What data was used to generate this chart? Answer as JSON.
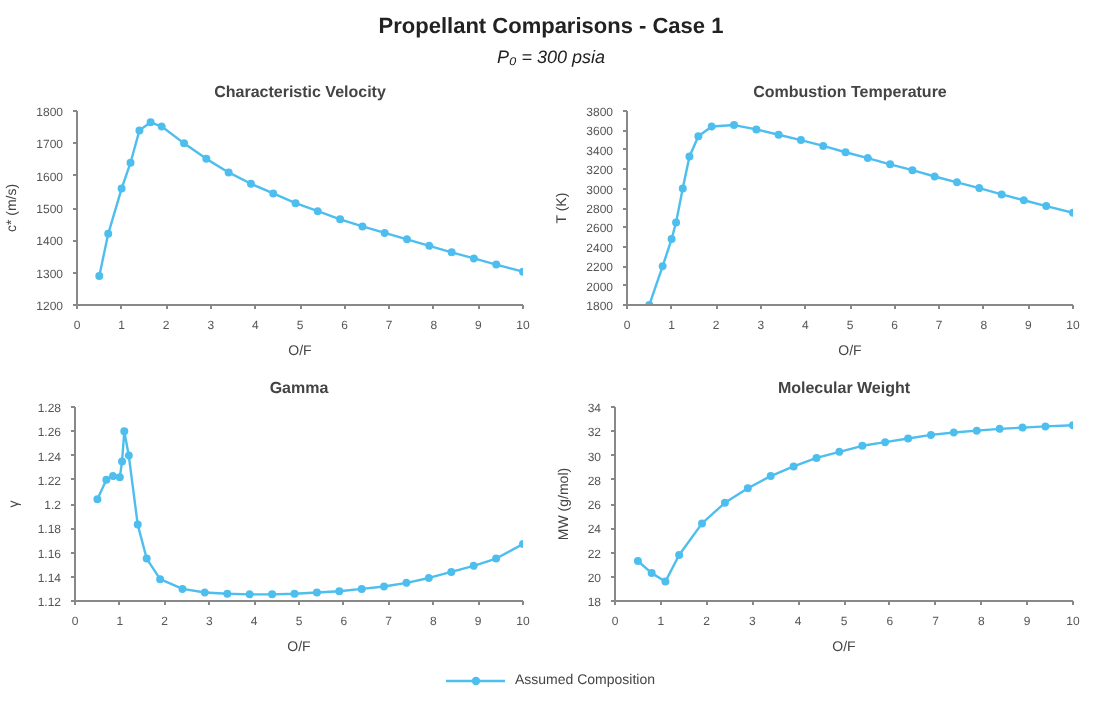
{
  "chart_data": [
    {
      "type": "other",
      "title": "Propellant Comparisons - Case 1",
      "subtitle": "P₀ = 300 psia"
    },
    {
      "type": "line",
      "title": "Characteristic Velocity",
      "xlabel": "O/F",
      "ylabel": "c* (m/s)",
      "xlim": [
        0,
        10
      ],
      "xticks": [
        0,
        1,
        2,
        3,
        4,
        5,
        6,
        7,
        8,
        9,
        10
      ],
      "ylim": [
        1200,
        1800
      ],
      "yticks": [
        1200,
        1300,
        1400,
        1500,
        1600,
        1700,
        1800
      ],
      "marker": "circle",
      "x": [
        0.5,
        0.7,
        1.0,
        1.2,
        1.4,
        1.65,
        1.9,
        2.4,
        2.9,
        3.4,
        3.9,
        4.4,
        4.9,
        5.4,
        5.9,
        6.4,
        6.9,
        7.4,
        7.9,
        8.4,
        8.9,
        9.4,
        10
      ],
      "series": [
        {
          "color": "#4dbeee",
          "values": [
            1290,
            1420,
            1560,
            1640,
            1740,
            1765,
            1752,
            1700,
            1652,
            1610,
            1575,
            1545,
            1515,
            1490,
            1465,
            1443,
            1423,
            1403,
            1383,
            1363,
            1344,
            1325,
            1303
          ]
        }
      ]
    },
    {
      "type": "line",
      "title": "Combustion Temperature",
      "xlabel": "O/F",
      "ylabel": "T (K)",
      "xlim": [
        0,
        10
      ],
      "xticks": [
        0,
        1,
        2,
        3,
        4,
        5,
        6,
        7,
        8,
        9,
        10
      ],
      "ylim": [
        1800,
        3800
      ],
      "yticks": [
        1800,
        2000,
        2200,
        2400,
        2600,
        2800,
        3000,
        3200,
        3400,
        3600,
        3800
      ],
      "marker": "circle",
      "x": [
        0.5,
        0.8,
        1.0,
        1.1,
        1.25,
        1.4,
        1.6,
        1.9,
        2.4,
        2.9,
        3.4,
        3.9,
        4.4,
        4.9,
        5.4,
        5.9,
        6.4,
        6.9,
        7.4,
        7.9,
        8.4,
        8.9,
        9.4,
        10
      ],
      "series": [
        {
          "color": "#4dbeee",
          "values": [
            1800,
            2200,
            2480,
            2650,
            3000,
            3330,
            3540,
            3640,
            3655,
            3610,
            3555,
            3500,
            3440,
            3375,
            3315,
            3250,
            3190,
            3125,
            3065,
            3005,
            2940,
            2880,
            2820,
            2750
          ]
        }
      ]
    },
    {
      "type": "line",
      "title": "Gamma",
      "xlabel": "O/F",
      "ylabel": "γ",
      "xlim": [
        0,
        10
      ],
      "xticks": [
        0,
        1,
        2,
        3,
        4,
        5,
        6,
        7,
        8,
        9,
        10
      ],
      "ylim": [
        1.12,
        1.28
      ],
      "yticks": [
        1.12,
        1.14,
        1.16,
        1.18,
        1.2,
        1.22,
        1.24,
        1.26,
        1.28
      ],
      "marker": "circle",
      "x": [
        0.5,
        0.7,
        0.85,
        1.0,
        1.05,
        1.1,
        1.2,
        1.4,
        1.6,
        1.9,
        2.4,
        2.9,
        3.4,
        3.9,
        4.4,
        4.9,
        5.4,
        5.9,
        6.4,
        6.9,
        7.4,
        7.9,
        8.4,
        8.9,
        9.4,
        10
      ],
      "series": [
        {
          "color": "#4dbeee",
          "values": [
            1.204,
            1.22,
            1.223,
            1.222,
            1.235,
            1.26,
            1.24,
            1.183,
            1.155,
            1.138,
            1.13,
            1.127,
            1.126,
            1.1255,
            1.1255,
            1.126,
            1.127,
            1.128,
            1.13,
            1.132,
            1.135,
            1.139,
            1.144,
            1.149,
            1.155,
            1.167
          ]
        }
      ]
    },
    {
      "type": "line",
      "title": "Molecular Weight",
      "xlabel": "O/F",
      "ylabel": "MW (g/mol)",
      "xlim": [
        0,
        10
      ],
      "xticks": [
        0,
        1,
        2,
        3,
        4,
        5,
        6,
        7,
        8,
        9,
        10
      ],
      "ylim": [
        18,
        34
      ],
      "yticks": [
        18,
        20,
        22,
        24,
        26,
        28,
        30,
        32,
        34
      ],
      "marker": "circle",
      "legend": "bottom",
      "x": [
        0.5,
        0.8,
        1.1,
        1.4,
        1.9,
        2.4,
        2.9,
        3.4,
        3.9,
        4.4,
        4.9,
        5.4,
        5.9,
        6.4,
        6.9,
        7.4,
        7.9,
        8.4,
        8.9,
        9.4,
        10
      ],
      "series": [
        {
          "name": "Assumed Composition",
          "color": "#4dbeee",
          "values": [
            21.3,
            20.3,
            19.6,
            21.8,
            24.4,
            26.1,
            27.3,
            28.3,
            29.1,
            29.8,
            30.3,
            30.8,
            31.1,
            31.4,
            31.7,
            31.9,
            32.05,
            32.2,
            32.3,
            32.4,
            32.5
          ]
        }
      ]
    }
  ]
}
